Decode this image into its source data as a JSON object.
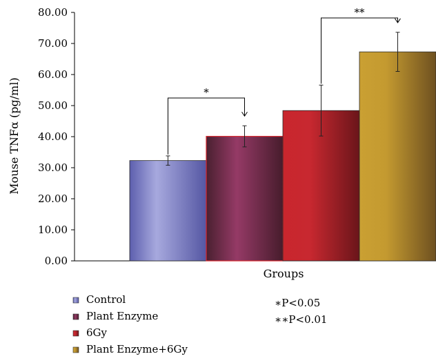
{
  "chart_data": {
    "type": "bar",
    "xlabel": "Groups",
    "ylabel": "Mouse TNFα (pg/ml)",
    "ylim": [
      0,
      80
    ],
    "yticks": [
      "0.00",
      "10.00",
      "20.00",
      "30.00",
      "40.00",
      "50.00",
      "60.00",
      "70.00",
      "80.00"
    ],
    "grid": false,
    "legend_position": "bottom-left",
    "series": [
      {
        "name": "Control",
        "value": 32.3,
        "error": 1.5,
        "color": "#7d7fc6"
      },
      {
        "name": "Plant Enzyme",
        "value": 40.1,
        "error": 3.4,
        "color": "#7a2e52"
      },
      {
        "name": "6Gy",
        "value": 48.4,
        "error": 8.2,
        "color": "#a8222a"
      },
      {
        "name": "Plant Enzyme+6Gy",
        "value": 67.3,
        "error": 6.3,
        "color": "#b48a2c"
      }
    ],
    "significance": [
      {
        "from": 0,
        "to": 1,
        "label": "*"
      },
      {
        "from": 2,
        "to": 3,
        "label": "**"
      }
    ],
    "pvalue_notes": [
      "∗P<0.05",
      "∗∗P<0.01"
    ]
  }
}
